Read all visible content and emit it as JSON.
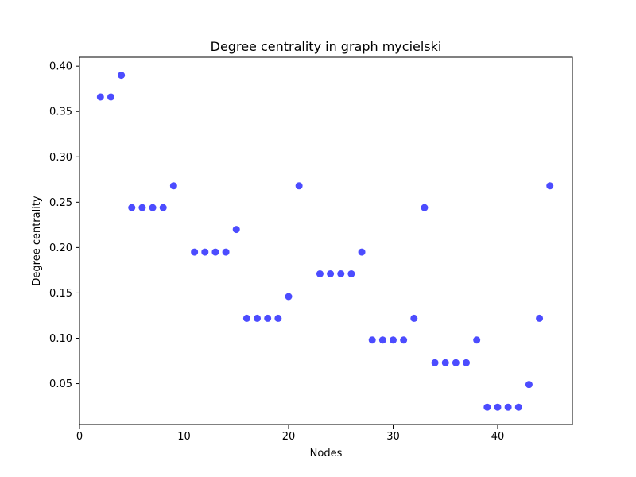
{
  "chart_data": {
    "type": "scatter",
    "title": "Degree centrality in graph mycielski",
    "xlabel": "Nodes",
    "ylabel": "Degree centrality",
    "xlim": [
      0,
      47.15
    ],
    "ylim": [
      0.0049,
      0.4098
    ],
    "xticks": [
      0,
      10,
      20,
      30,
      40
    ],
    "yticks": [
      0.05,
      0.1,
      0.15,
      0.2,
      0.25,
      0.3,
      0.35,
      0.4
    ],
    "grid": false,
    "marker_color": "#0000ff",
    "marker_alpha": 0.7,
    "x": [
      2,
      3,
      4,
      5,
      6,
      7,
      8,
      9,
      11,
      12,
      13,
      14,
      15,
      16,
      17,
      18,
      19,
      20,
      21,
      23,
      24,
      25,
      26,
      27,
      28,
      29,
      30,
      31,
      32,
      33,
      34,
      35,
      36,
      37,
      38,
      39,
      40,
      41,
      42,
      43,
      44,
      45
    ],
    "y": [
      0.366,
      0.366,
      0.39,
      0.244,
      0.244,
      0.244,
      0.244,
      0.268,
      0.195,
      0.195,
      0.195,
      0.195,
      0.22,
      0.122,
      0.122,
      0.122,
      0.122,
      0.146,
      0.268,
      0.171,
      0.171,
      0.171,
      0.171,
      0.195,
      0.098,
      0.098,
      0.098,
      0.098,
      0.122,
      0.244,
      0.073,
      0.073,
      0.073,
      0.073,
      0.098,
      0.024,
      0.024,
      0.024,
      0.024,
      0.049,
      0.122,
      0.268
    ]
  }
}
